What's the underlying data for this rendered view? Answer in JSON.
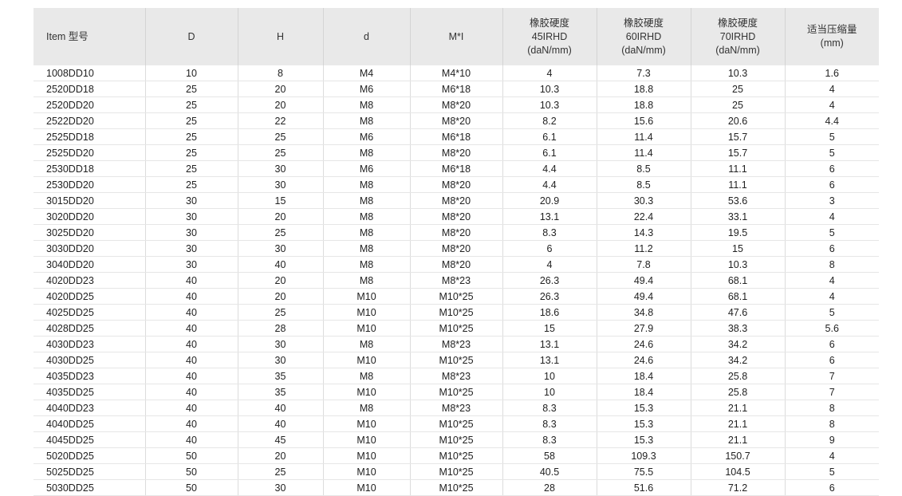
{
  "headers": [
    "Item 型号",
    "D",
    "H",
    "d",
    "M*I",
    "橡胶硬度\n45IRHD\n(daN/mm)",
    "橡胶硬度\n60IRHD\n(daN/mm)",
    "橡胶硬度\n70IRHD\n(daN/mm)",
    "适当压缩量\n(mm)"
  ],
  "rows": [
    [
      "1008DD10",
      "10",
      "8",
      "M4",
      "M4*10",
      "4",
      "7.3",
      "10.3",
      "1.6"
    ],
    [
      "2520DD18",
      "25",
      "20",
      "M6",
      "M6*18",
      "10.3",
      "18.8",
      "25",
      "4"
    ],
    [
      "2520DD20",
      "25",
      "20",
      "M8",
      "M8*20",
      "10.3",
      "18.8",
      "25",
      "4"
    ],
    [
      "2522DD20",
      "25",
      "22",
      "M8",
      "M8*20",
      "8.2",
      "15.6",
      "20.6",
      "4.4"
    ],
    [
      "2525DD18",
      "25",
      "25",
      "M6",
      "M6*18",
      "6.1",
      "11.4",
      "15.7",
      "5"
    ],
    [
      "2525DD20",
      "25",
      "25",
      "M8",
      "M8*20",
      "6.1",
      "11.4",
      "15.7",
      "5"
    ],
    [
      "2530DD18",
      "25",
      "30",
      "M6",
      "M6*18",
      "4.4",
      "8.5",
      "11.1",
      "6"
    ],
    [
      "2530DD20",
      "25",
      "30",
      "M8",
      "M8*20",
      "4.4",
      "8.5",
      "11.1",
      "6"
    ],
    [
      "3015DD20",
      "30",
      "15",
      "M8",
      "M8*20",
      "20.9",
      "30.3",
      "53.6",
      "3"
    ],
    [
      "3020DD20",
      "30",
      "20",
      "M8",
      "M8*20",
      "13.1",
      "22.4",
      "33.1",
      "4"
    ],
    [
      "3025DD20",
      "30",
      "25",
      "M8",
      "M8*20",
      "8.3",
      "14.3",
      "19.5",
      "5"
    ],
    [
      "3030DD20",
      "30",
      "30",
      "M8",
      "M8*20",
      "6",
      "11.2",
      "15",
      "6"
    ],
    [
      "3040DD20",
      "30",
      "40",
      "M8",
      "M8*20",
      "4",
      "7.8",
      "10.3",
      "8"
    ],
    [
      "4020DD23",
      "40",
      "20",
      "M8",
      "M8*23",
      "26.3",
      "49.4",
      "68.1",
      "4"
    ],
    [
      "4020DD25",
      "40",
      "20",
      "M10",
      "M10*25",
      "26.3",
      "49.4",
      "68.1",
      "4"
    ],
    [
      "4025DD25",
      "40",
      "25",
      "M10",
      "M10*25",
      "18.6",
      "34.8",
      "47.6",
      "5"
    ],
    [
      "4028DD25",
      "40",
      "28",
      "M10",
      "M10*25",
      "15",
      "27.9",
      "38.3",
      "5.6"
    ],
    [
      "4030DD23",
      "40",
      "30",
      "M8",
      "M8*23",
      "13.1",
      "24.6",
      "34.2",
      "6"
    ],
    [
      "4030DD25",
      "40",
      "30",
      "M10",
      "M10*25",
      "13.1",
      "24.6",
      "34.2",
      "6"
    ],
    [
      "4035DD23",
      "40",
      "35",
      "M8",
      "M8*23",
      "10",
      "18.4",
      "25.8",
      "7"
    ],
    [
      "4035DD25",
      "40",
      "35",
      "M10",
      "M10*25",
      "10",
      "18.4",
      "25.8",
      "7"
    ],
    [
      "4040DD23",
      "40",
      "40",
      "M8",
      "M8*23",
      "8.3",
      "15.3",
      "21.1",
      "8"
    ],
    [
      "4040DD25",
      "40",
      "40",
      "M10",
      "M10*25",
      "8.3",
      "15.3",
      "21.1",
      "8"
    ],
    [
      "4045DD25",
      "40",
      "45",
      "M10",
      "M10*25",
      "8.3",
      "15.3",
      "21.1",
      "9"
    ],
    [
      "5020DD25",
      "50",
      "20",
      "M10",
      "M10*25",
      "58",
      "109.3",
      "150.7",
      "4"
    ],
    [
      "5025DD25",
      "50",
      "25",
      "M10",
      "M10*25",
      "40.5",
      "75.5",
      "104.5",
      "5"
    ],
    [
      "5030DD25",
      "50",
      "30",
      "M10",
      "M10*25",
      "28",
      "51.6",
      "71.2",
      "6"
    ]
  ]
}
